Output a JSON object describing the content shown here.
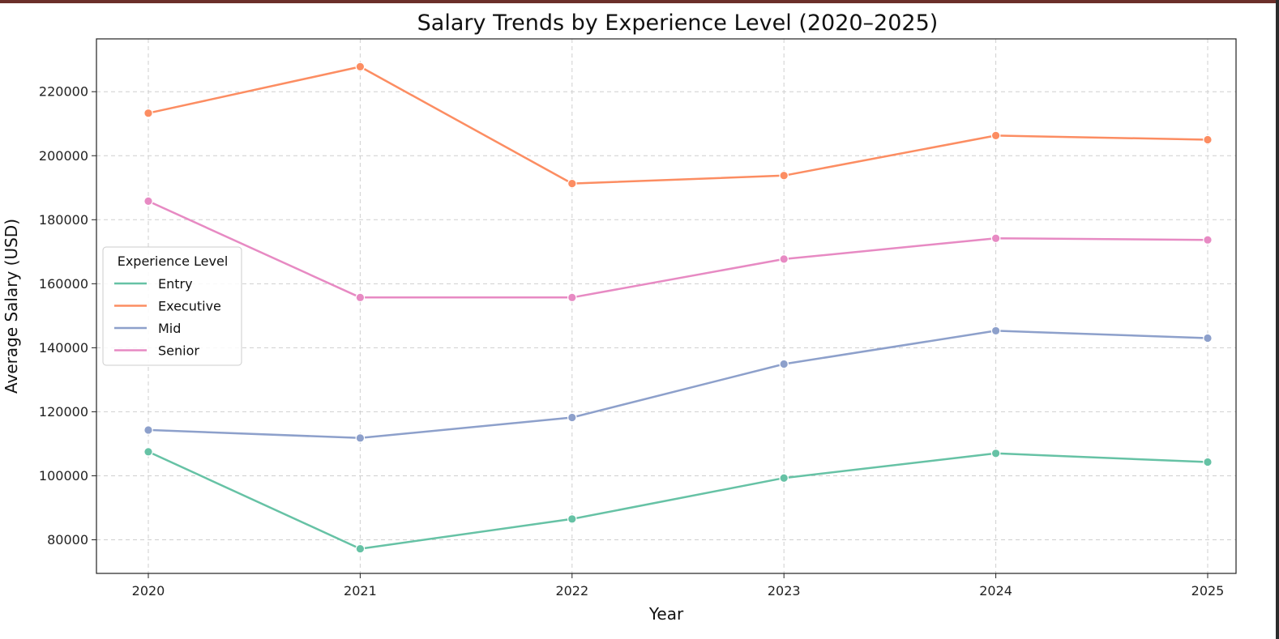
{
  "chart_data": {
    "type": "line",
    "title": "Salary Trends by Experience Level (2020–2025)",
    "xlabel": "Year",
    "ylabel": "Average Salary (USD)",
    "x": [
      "2020",
      "2021",
      "2022",
      "2023",
      "2024",
      "2025"
    ],
    "yticks": [
      80000,
      100000,
      120000,
      140000,
      160000,
      180000,
      200000,
      220000
    ],
    "ylim": [
      69500,
      236500
    ],
    "grid": true,
    "legend": {
      "title": "Experience Level",
      "placement": "center-left"
    },
    "series": [
      {
        "name": "Entry",
        "color": "#66c2a5",
        "values": [
          107500,
          77200,
          86500,
          99300,
          107000,
          104300
        ]
      },
      {
        "name": "Executive",
        "color": "#fc8d62",
        "values": [
          213300,
          227800,
          191300,
          193800,
          206300,
          205000
        ]
      },
      {
        "name": "Mid",
        "color": "#8da0cb",
        "values": [
          114300,
          111800,
          118200,
          134900,
          145300,
          143000
        ]
      },
      {
        "name": "Senior",
        "color": "#e78ac3",
        "values": [
          185800,
          155700,
          155700,
          167700,
          174200,
          173700
        ]
      }
    ]
  }
}
